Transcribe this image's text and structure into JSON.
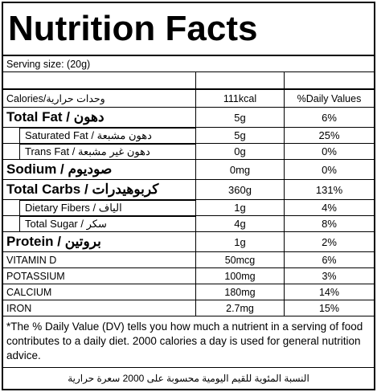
{
  "title": "Nutrition Facts",
  "serving": "Serving size:  (20g)",
  "header": {
    "label": "Calories/وحدات حرارية",
    "amount": "111kcal",
    "dv": "%Daily Values"
  },
  "nutrients": [
    {
      "label": "Total Fat / دهون",
      "amount": "5g",
      "dv": "6%",
      "parts": [
        {
          "label": "Saturated Fat / دهون مشبعة",
          "amount": "5g",
          "dv": "25%"
        },
        {
          "label": "Trans Fat / دهون غير مشبعة",
          "amount": "0g",
          "dv": "0%"
        }
      ]
    },
    {
      "label": "Sodium / صوديوم",
      "amount": "0mg",
      "dv": "0%",
      "parts": []
    },
    {
      "label": "Total Carbs / كربوهيدرات",
      "amount": "360g",
      "dv": "131%",
      "parts": [
        {
          "label": "Dietary Fibers / الياف",
          "amount": "1g",
          "dv": "4%"
        },
        {
          "label": "Total Sugar / سكر",
          "amount": "4g",
          "dv": "8%"
        }
      ]
    },
    {
      "label": "Protein / بروتين",
      "amount": "1g",
      "dv": "2%",
      "parts": []
    }
  ],
  "vitamins": [
    {
      "label": "VITAMIN D",
      "amount": "50mcg",
      "dv": "6%"
    },
    {
      "label": "POTASSIUM",
      "amount": "100mg",
      "dv": "3%"
    },
    {
      "label": "CALCIUM",
      "amount": "180mg",
      "dv": "14%"
    },
    {
      "label": "IRON",
      "amount": "2.7mg",
      "dv": "15%"
    }
  ],
  "footnote": "*The % Daily Value (DV) tells you how much a nutrient in a serving of food contributes to a daily diet. 2000 calories a day is used for general nutrition advice.",
  "footnote_ar": "النسبة المئوية للقيم اليومية محسوبة على 2000 سعرة حرارية"
}
